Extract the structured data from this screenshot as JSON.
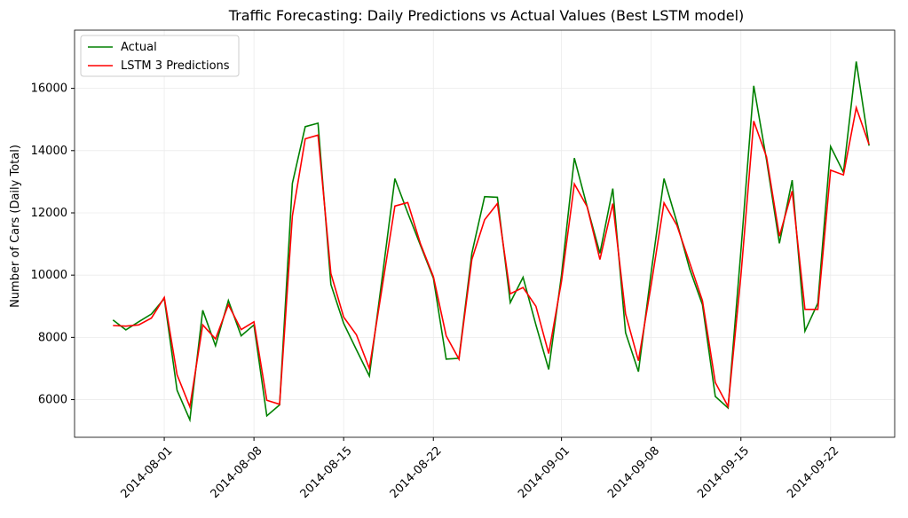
{
  "chart_data": {
    "type": "line",
    "title": "Traffic Forecasting: Daily Predictions vs Actual Values (Best LSTM model)",
    "ylabel": "Number of Cars (Daily Total)",
    "x": [
      "2014-07-28",
      "2014-07-29",
      "2014-07-30",
      "2014-07-31",
      "2014-08-01",
      "2014-08-02",
      "2014-08-03",
      "2014-08-04",
      "2014-08-05",
      "2014-08-06",
      "2014-08-07",
      "2014-08-08",
      "2014-08-09",
      "2014-08-10",
      "2014-08-11",
      "2014-08-12",
      "2014-08-13",
      "2014-08-14",
      "2014-08-15",
      "2014-08-16",
      "2014-08-17",
      "2014-08-18",
      "2014-08-19",
      "2014-08-20",
      "2014-08-21",
      "2014-08-22",
      "2014-08-23",
      "2014-08-24",
      "2014-08-25",
      "2014-08-26",
      "2014-08-27",
      "2014-08-28",
      "2014-08-29",
      "2014-08-30",
      "2014-08-31",
      "2014-09-01",
      "2014-09-02",
      "2014-09-03",
      "2014-09-04",
      "2014-09-05",
      "2014-09-06",
      "2014-09-07",
      "2014-09-08",
      "2014-09-09",
      "2014-09-10",
      "2014-09-11",
      "2014-09-12",
      "2014-09-13",
      "2014-09-14",
      "2014-09-15",
      "2014-09-16",
      "2014-09-17",
      "2014-09-18",
      "2014-09-19",
      "2014-09-20",
      "2014-09-21",
      "2014-09-22",
      "2014-09-23",
      "2014-09-24",
      "2014-09-25"
    ],
    "series": [
      {
        "name": "Actual",
        "color": "#008000",
        "values": [
          8560,
          8240,
          8500,
          8750,
          9250,
          6300,
          5350,
          8870,
          7730,
          9180,
          8050,
          8400,
          5480,
          5830,
          12950,
          14770,
          14880,
          9700,
          8450,
          7600,
          6760,
          9900,
          13100,
          12000,
          10950,
          9900,
          7300,
          7330,
          10700,
          12520,
          12500,
          9120,
          9930,
          8400,
          6970,
          10000,
          13760,
          12200,
          10700,
          12780,
          8150,
          6900,
          10100,
          13100,
          11700,
          10200,
          9050,
          6100,
          5730,
          10800,
          16080,
          13700,
          11020,
          13050,
          8200,
          9100,
          14130,
          13300,
          16860,
          14160
        ]
      },
      {
        "name": "LSTM 3 Predictions",
        "color": "#ff0000",
        "values": [
          8380,
          8360,
          8400,
          8620,
          9280,
          6800,
          5770,
          8400,
          7950,
          9050,
          8250,
          8500,
          5980,
          5850,
          11900,
          14380,
          14500,
          10050,
          8650,
          8080,
          7000,
          9600,
          12220,
          12330,
          11000,
          9950,
          8050,
          7300,
          10500,
          11780,
          12300,
          9400,
          9600,
          9000,
          7480,
          9800,
          12930,
          12200,
          10500,
          12300,
          8750,
          7250,
          9700,
          12320,
          11600,
          10400,
          9180,
          6550,
          5780,
          10000,
          14950,
          13800,
          11250,
          12700,
          8900,
          8900,
          13370,
          13220,
          15380,
          14200
        ]
      }
    ],
    "xlim": [
      "2014-07-25",
      "2014-09-27"
    ],
    "xticks": [
      "2014-08-01",
      "2014-08-08",
      "2014-08-15",
      "2014-08-22",
      "2014-09-01",
      "2014-09-08",
      "2014-09-15",
      "2014-09-22"
    ],
    "ylim": [
      4790,
      17870
    ],
    "yticks": [
      6000,
      8000,
      10000,
      12000,
      14000,
      16000
    ],
    "grid": true,
    "legend": "upper left"
  }
}
